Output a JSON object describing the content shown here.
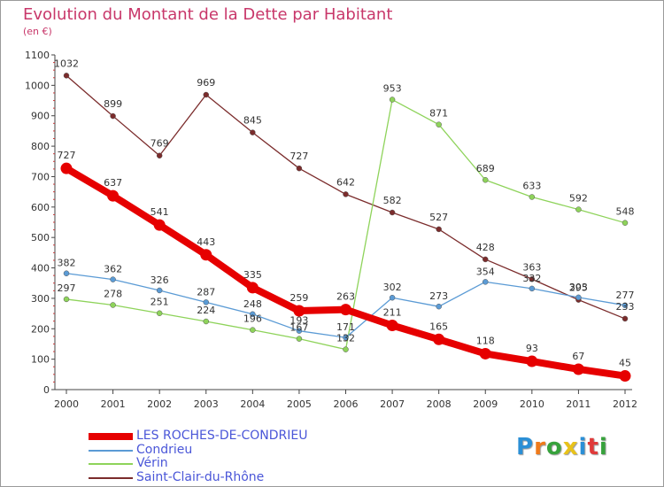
{
  "title": "Evolution du Montant de la Dette par Habitant",
  "unit_label": "(en €)",
  "logo": {
    "text": "Proxiti",
    "letters": [
      "P",
      "r",
      "o",
      "x",
      "i",
      "t",
      "i"
    ],
    "colors": [
      "#2b8fd6",
      "#f07a1a",
      "#37a23c",
      "#e8c21a",
      "#2b8fd6",
      "#e03a3a",
      "#37a23c"
    ]
  },
  "chart_data": {
    "type": "line",
    "title": "Evolution du Montant de la Dette par Habitant",
    "ylabel": "(en €)",
    "xlabel": "",
    "categories": [
      "2000",
      "2001",
      "2002",
      "2003",
      "2004",
      "2005",
      "2006",
      "2007",
      "2008",
      "2009",
      "2010",
      "2011",
      "2012"
    ],
    "ylim": [
      0,
      1100
    ],
    "yticks": [
      0,
      100,
      200,
      300,
      400,
      500,
      600,
      700,
      800,
      900,
      1000,
      1100
    ],
    "grid": false,
    "legend": "bottom-left",
    "series": [
      {
        "name": "LES ROCHES-DE-CONDRIEU",
        "color": "#e60000",
        "highlight": true,
        "values": [
          727,
          637,
          541,
          443,
          335,
          259,
          263,
          211,
          165,
          118,
          93,
          67,
          45
        ]
      },
      {
        "name": "Condrieu",
        "color": "#5b9bd5",
        "highlight": false,
        "values": [
          382,
          362,
          326,
          287,
          248,
          193,
          171,
          302,
          273,
          354,
          332,
          303,
          277
        ]
      },
      {
        "name": "Vérin",
        "color": "#8ed35a",
        "highlight": false,
        "values": [
          297,
          278,
          251,
          224,
          196,
          167,
          132,
          953,
          871,
          689,
          633,
          592,
          548
        ]
      },
      {
        "name": "Saint-Clair-du-Rhône",
        "color": "#7b2c2c",
        "highlight": false,
        "values": [
          1032,
          899,
          769,
          969,
          845,
          727,
          642,
          582,
          527,
          428,
          363,
          295,
          233
        ]
      }
    ]
  }
}
